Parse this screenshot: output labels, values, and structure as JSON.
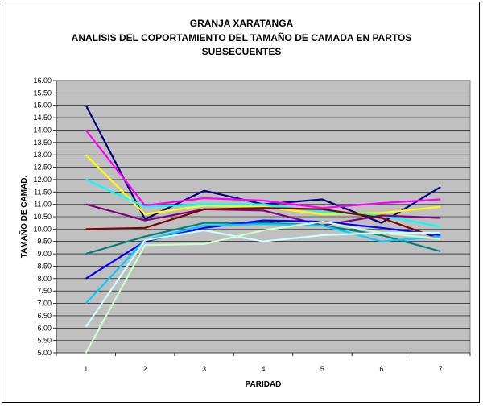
{
  "chart_data": {
    "type": "line",
    "title": "GRANJA XARATANGA",
    "subtitle_line1": "ANALISIS DEL COPORTAMIENTO DEL TAMAÑO DE CAMADA EN PARTOS",
    "subtitle_line2": "SUBSECUENTES",
    "xlabel": "PARIDAD",
    "ylabel": "TAMAÑO DE CAMAD.",
    "x": [
      1,
      2,
      3,
      4,
      5,
      6,
      7
    ],
    "ylim": [
      5,
      16
    ],
    "yticks": [
      "5.00",
      "5.50",
      "6.00",
      "6.50",
      "7.00",
      "7.50",
      "8.00",
      "8.50",
      "9.00",
      "9.50",
      "10.00",
      "10.50",
      "11.00",
      "11.50",
      "12.00",
      "12.50",
      "13.00",
      "13.50",
      "14.00",
      "14.50",
      "15.00",
      "15.50",
      "16.00"
    ],
    "grid": true,
    "plot_background": "#c0c0c0",
    "series": [
      {
        "color": "#000080",
        "values": [
          15.0,
          10.4,
          11.55,
          11.0,
          11.2,
          10.25,
          11.7
        ]
      },
      {
        "color": "#ff00ff",
        "values": [
          14.0,
          10.95,
          11.25,
          11.15,
          10.85,
          11.05,
          11.2
        ]
      },
      {
        "color": "#ffff00",
        "values": [
          13.0,
          10.6,
          10.95,
          10.9,
          10.6,
          10.65,
          10.9
        ]
      },
      {
        "color": "#00ffff",
        "values": [
          12.0,
          10.9,
          11.0,
          11.0,
          10.7,
          10.55,
          10.1
        ]
      },
      {
        "color": "#800080",
        "values": [
          11.0,
          10.35,
          10.8,
          10.75,
          10.15,
          10.55,
          10.45
        ]
      },
      {
        "color": "#800000",
        "values": [
          10.0,
          10.05,
          10.8,
          10.85,
          10.8,
          10.45,
          9.6
        ]
      },
      {
        "color": "#008080",
        "values": [
          9.0,
          9.7,
          10.25,
          10.25,
          10.15,
          9.75,
          9.1
        ]
      },
      {
        "color": "#0000ff",
        "values": [
          8.0,
          9.5,
          10.05,
          10.35,
          10.3,
          10.05,
          9.75
        ]
      },
      {
        "color": "#00ccff",
        "values": [
          7.0,
          9.55,
          10.15,
          10.2,
          10.15,
          9.5,
          9.7
        ]
      },
      {
        "color": "#ccffff",
        "values": [
          6.05,
          9.55,
          9.95,
          9.5,
          9.75,
          9.85,
          9.85
        ]
      },
      {
        "color": "#ccffcc",
        "values": [
          5.0,
          9.35,
          9.4,
          9.95,
          10.3,
          9.85,
          9.6
        ]
      }
    ]
  }
}
